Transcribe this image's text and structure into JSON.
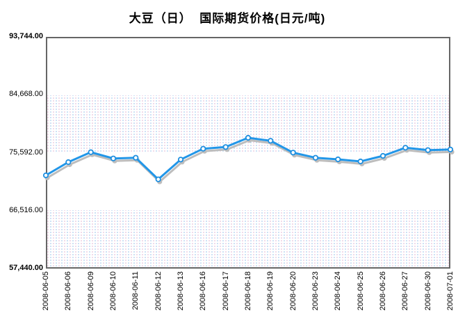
{
  "title": "大豆（日）  国际期货价格(日元/吨)",
  "colors": {
    "line": "#2196e8",
    "marker_fill": "#ffffff",
    "marker_stroke": "#1e8fe0",
    "shadow": "#bdbdbd",
    "frame": "#666666",
    "band_dot_blue": "#bcd9f2",
    "band_dot_pink": "#eccfe2",
    "text": "#000000"
  },
  "chart_data": {
    "type": "line",
    "title": "大豆（日）  国际期货价格(日元/吨)",
    "unit": "日元/吨",
    "x": [
      "2008-06-05",
      "2008-06-06",
      "2008-06-09",
      "2008-06-10",
      "2008-06-11",
      "2008-06-12",
      "2008-06-13",
      "2008-06-16",
      "2008-06-17",
      "2008-06-18",
      "2008-06-19",
      "2008-06-20",
      "2008-06-23",
      "2008-06-24",
      "2008-06-25",
      "2008-06-26",
      "2008-06-27",
      "2008-06-30",
      "2008-07-01"
    ],
    "values": [
      72050,
      74120,
      75680,
      74700,
      74810,
      71430,
      74520,
      76220,
      76490,
      77940,
      77470,
      75610,
      74810,
      74560,
      74230,
      75100,
      76380,
      76010,
      76090
    ],
    "ylim": [
      57440,
      93744
    ],
    "yticks": [
      {
        "value": 57440,
        "label": "57,440.00",
        "bold": true
      },
      {
        "value": 66516,
        "label": "66,516.00",
        "bold": false
      },
      {
        "value": 75592,
        "label": "75,592.00",
        "bold": false
      },
      {
        "value": 84668,
        "label": "84,668.00",
        "bold": false
      },
      {
        "value": 93744,
        "label": "93,744.00",
        "bold": true
      }
    ],
    "xlabel": "",
    "ylabel": "",
    "legend": "none",
    "grid": "alternating-dotted-bands",
    "marker": "circle-white",
    "line_shadow": true
  }
}
